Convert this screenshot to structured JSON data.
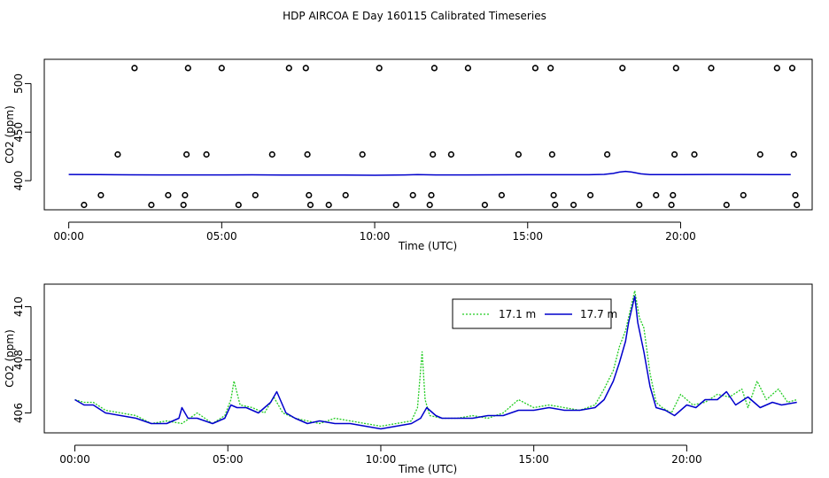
{
  "page_title": "HDP AIRCOA E  Day 160115  Calibrated Timeseries",
  "colors": {
    "green": "#22cc22",
    "blue": "#0000cc",
    "axis": "#000000"
  },
  "chart_data": [
    {
      "type": "scatter",
      "title": "",
      "xlabel": "Time (UTC)",
      "ylabel": "CO2 (ppm)",
      "x_unit": "hours",
      "xlim": [
        -0.8,
        24.3
      ],
      "ylim": [
        370,
        525
      ],
      "xticks": [
        {
          "x": 0,
          "label": "00:00"
        },
        {
          "x": 5,
          "label": "05:00"
        },
        {
          "x": 10,
          "label": "10:00"
        },
        {
          "x": 15,
          "label": "15:00"
        },
        {
          "x": 20,
          "label": "20:00"
        }
      ],
      "yticks": [
        {
          "y": 400,
          "label": "400"
        },
        {
          "y": 450,
          "label": "450"
        },
        {
          "y": 500,
          "label": "500"
        }
      ],
      "points": [
        {
          "x": 0.5,
          "y": 375
        },
        {
          "x": 1.05,
          "y": 385
        },
        {
          "x": 1.6,
          "y": 427
        },
        {
          "x": 2.15,
          "y": 516
        },
        {
          "x": 2.7,
          "y": 375
        },
        {
          "x": 3.25,
          "y": 385
        },
        {
          "x": 3.75,
          "y": 375
        },
        {
          "x": 3.8,
          "y": 385
        },
        {
          "x": 3.85,
          "y": 427
        },
        {
          "x": 3.9,
          "y": 516
        },
        {
          "x": 4.5,
          "y": 427
        },
        {
          "x": 5.0,
          "y": 516
        },
        {
          "x": 5.55,
          "y": 375
        },
        {
          "x": 6.1,
          "y": 385
        },
        {
          "x": 6.65,
          "y": 427
        },
        {
          "x": 7.2,
          "y": 516
        },
        {
          "x": 7.75,
          "y": 516
        },
        {
          "x": 7.8,
          "y": 427
        },
        {
          "x": 7.85,
          "y": 385
        },
        {
          "x": 7.9,
          "y": 375
        },
        {
          "x": 8.5,
          "y": 375
        },
        {
          "x": 9.05,
          "y": 385
        },
        {
          "x": 9.6,
          "y": 427
        },
        {
          "x": 10.15,
          "y": 516
        },
        {
          "x": 10.7,
          "y": 375
        },
        {
          "x": 11.25,
          "y": 385
        },
        {
          "x": 11.8,
          "y": 375
        },
        {
          "x": 11.85,
          "y": 385
        },
        {
          "x": 11.9,
          "y": 427
        },
        {
          "x": 11.95,
          "y": 516
        },
        {
          "x": 12.5,
          "y": 427
        },
        {
          "x": 13.05,
          "y": 516
        },
        {
          "x": 13.6,
          "y": 375
        },
        {
          "x": 14.15,
          "y": 385
        },
        {
          "x": 14.7,
          "y": 427
        },
        {
          "x": 15.25,
          "y": 516
        },
        {
          "x": 15.75,
          "y": 516
        },
        {
          "x": 15.8,
          "y": 427
        },
        {
          "x": 15.85,
          "y": 385
        },
        {
          "x": 15.9,
          "y": 375
        },
        {
          "x": 16.5,
          "y": 375
        },
        {
          "x": 17.05,
          "y": 385
        },
        {
          "x": 17.6,
          "y": 427
        },
        {
          "x": 18.1,
          "y": 516
        },
        {
          "x": 18.65,
          "y": 375
        },
        {
          "x": 19.2,
          "y": 385
        },
        {
          "x": 19.7,
          "y": 375
        },
        {
          "x": 19.75,
          "y": 385
        },
        {
          "x": 19.8,
          "y": 427
        },
        {
          "x": 19.85,
          "y": 516
        },
        {
          "x": 20.45,
          "y": 427
        },
        {
          "x": 21.0,
          "y": 516
        },
        {
          "x": 21.5,
          "y": 375
        },
        {
          "x": 22.05,
          "y": 385
        },
        {
          "x": 22.6,
          "y": 427
        },
        {
          "x": 23.15,
          "y": 516
        },
        {
          "x": 23.65,
          "y": 516
        },
        {
          "x": 23.7,
          "y": 427
        },
        {
          "x": 23.75,
          "y": 385
        },
        {
          "x": 23.8,
          "y": 375
        }
      ],
      "series": [
        {
          "color": "#0000cc",
          "x": [
            0,
            1,
            2,
            3,
            4,
            5,
            6,
            7,
            8,
            9,
            10,
            11,
            11.4,
            12,
            13,
            14,
            15,
            16,
            17,
            17.5,
            17.8,
            18.0,
            18.2,
            18.4,
            18.7,
            19,
            20,
            21,
            22,
            23,
            23.6
          ],
          "y": [
            406.4,
            406.2,
            406.0,
            405.9,
            405.9,
            405.9,
            406.0,
            405.8,
            405.7,
            405.7,
            405.6,
            405.9,
            406.3,
            405.9,
            405.9,
            406.0,
            406.1,
            406.1,
            406.1,
            406.5,
            407.5,
            408.8,
            409.6,
            408.8,
            407.0,
            406.2,
            406.3,
            406.4,
            406.4,
            406.3,
            406.3
          ]
        }
      ]
    },
    {
      "type": "line",
      "title": "",
      "xlabel": "Time (UTC)",
      "ylabel": "CO2 (ppm)",
      "x_unit": "hours",
      "xlim": [
        -1,
        24.1
      ],
      "ylim": [
        405.25,
        410.85
      ],
      "xticks": [
        {
          "x": 0,
          "label": "00:00"
        },
        {
          "x": 5,
          "label": "05:00"
        },
        {
          "x": 10,
          "label": "10:00"
        },
        {
          "x": 15,
          "label": "15:00"
        },
        {
          "x": 20,
          "label": "20:00"
        }
      ],
      "yticks": [
        {
          "y": 406,
          "label": "406"
        },
        {
          "y": 408,
          "label": "408"
        },
        {
          "y": 410,
          "label": "410"
        }
      ],
      "legend": {
        "position": "top-right",
        "entries": [
          "17.1 m",
          "17.7 m"
        ]
      },
      "series": [
        {
          "name": "17.1 m",
          "color": "#22cc22",
          "dashed": true,
          "x": [
            0,
            0.3,
            0.6,
            1.0,
            1.5,
            2.0,
            2.5,
            3.0,
            3.5,
            4.0,
            4.5,
            4.9,
            5.1,
            5.2,
            5.4,
            5.8,
            6.2,
            6.5,
            6.8,
            7.2,
            7.6,
            8.0,
            8.5,
            9.0,
            9.5,
            10.0,
            10.5,
            11.0,
            11.2,
            11.35,
            11.45,
            11.6,
            12.0,
            12.5,
            13.0,
            13.5,
            14.0,
            14.5,
            15.0,
            15.5,
            16.0,
            16.5,
            17.0,
            17.3,
            17.6,
            17.8,
            18.0,
            18.2,
            18.3,
            18.45,
            18.6,
            18.8,
            19.0,
            19.2,
            19.5,
            19.8,
            20.2,
            20.6,
            21.0,
            21.4,
            21.8,
            22.0,
            22.3,
            22.6,
            23.0,
            23.3,
            23.6
          ],
          "y": [
            406.5,
            406.4,
            406.4,
            406.1,
            406.0,
            405.9,
            405.6,
            405.7,
            405.6,
            406.0,
            405.6,
            405.9,
            406.5,
            407.2,
            406.3,
            406.2,
            406.0,
            406.6,
            406.0,
            405.8,
            405.7,
            405.6,
            405.8,
            405.7,
            405.6,
            405.5,
            405.6,
            405.7,
            406.2,
            408.3,
            406.5,
            405.9,
            405.8,
            405.8,
            405.9,
            405.8,
            406.0,
            406.5,
            406.2,
            406.3,
            406.2,
            406.1,
            406.3,
            406.9,
            407.6,
            408.5,
            409.1,
            410.1,
            410.6,
            409.6,
            409.2,
            407.5,
            406.4,
            406.2,
            406.0,
            406.7,
            406.3,
            406.4,
            406.7,
            406.6,
            406.9,
            406.2,
            407.2,
            406.5,
            406.9,
            406.4,
            406.5
          ]
        },
        {
          "name": "17.7 m",
          "color": "#0000cc",
          "dashed": false,
          "x": [
            0,
            0.3,
            0.6,
            1.0,
            1.5,
            2.0,
            2.5,
            3.0,
            3.4,
            3.5,
            3.7,
            4.0,
            4.5,
            4.9,
            5.1,
            5.3,
            5.6,
            6.0,
            6.4,
            6.6,
            6.9,
            7.2,
            7.6,
            8.0,
            8.5,
            9.0,
            9.5,
            10.0,
            10.5,
            11.0,
            11.3,
            11.5,
            11.8,
            12.0,
            12.5,
            13.0,
            13.5,
            14.0,
            14.5,
            15.0,
            15.5,
            16.0,
            16.5,
            17.0,
            17.3,
            17.6,
            17.8,
            18.0,
            18.1,
            18.2,
            18.3,
            18.4,
            18.6,
            18.8,
            19.0,
            19.3,
            19.6,
            20.0,
            20.3,
            20.6,
            21.0,
            21.3,
            21.6,
            22.0,
            22.4,
            22.8,
            23.1,
            23.6
          ],
          "y": [
            406.5,
            406.3,
            406.3,
            406.0,
            405.9,
            405.8,
            405.6,
            405.6,
            405.8,
            406.2,
            405.8,
            405.8,
            405.6,
            405.8,
            406.3,
            406.2,
            406.2,
            406.0,
            406.4,
            406.8,
            406.0,
            405.8,
            405.6,
            405.7,
            405.6,
            405.6,
            405.5,
            405.4,
            405.5,
            405.6,
            405.8,
            406.2,
            405.9,
            405.8,
            405.8,
            405.8,
            405.9,
            405.9,
            406.1,
            406.1,
            406.2,
            406.1,
            406.1,
            406.2,
            406.5,
            407.2,
            407.9,
            408.7,
            409.4,
            409.9,
            410.4,
            409.4,
            408.3,
            407.0,
            406.2,
            406.1,
            405.9,
            406.3,
            406.2,
            406.5,
            406.5,
            406.8,
            406.3,
            406.6,
            406.2,
            406.4,
            406.3,
            406.4
          ]
        }
      ]
    }
  ]
}
